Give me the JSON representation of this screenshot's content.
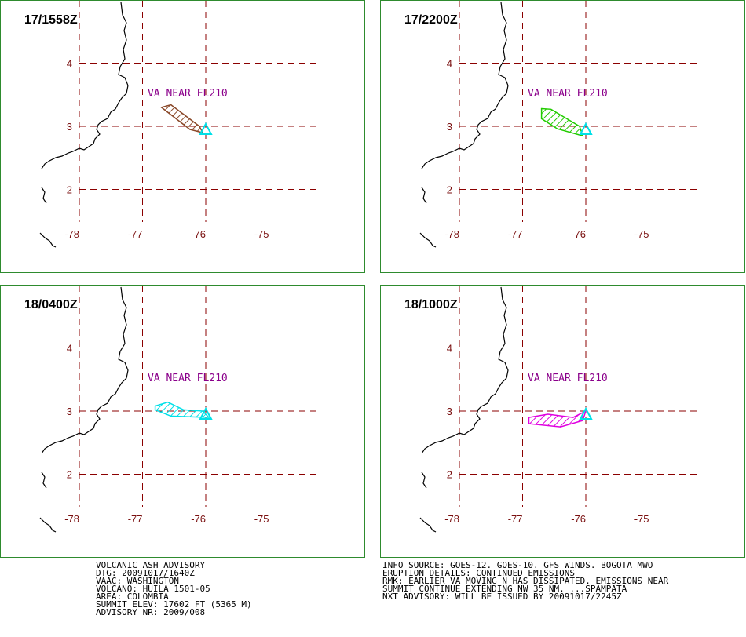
{
  "panels": [
    {
      "time": "17/1558Z",
      "plume_color": "#8b4a2b",
      "plume": [
        [
          -76.7,
          3.3
        ],
        [
          -76.55,
          3.34
        ],
        [
          -76.1,
          3.0
        ],
        [
          -76.05,
          2.9
        ],
        [
          -76.25,
          2.95
        ]
      ]
    },
    {
      "time": "17/2200Z",
      "plume_color": "#22cc00",
      "plume": [
        [
          -76.7,
          3.28
        ],
        [
          -76.55,
          3.27
        ],
        [
          -76.1,
          3.0
        ],
        [
          -76.05,
          2.85
        ],
        [
          -76.45,
          2.96
        ],
        [
          -76.7,
          3.12
        ]
      ]
    },
    {
      "time": "18/0400Z",
      "plume_color": "#00e0e8",
      "plume": [
        [
          -76.8,
          3.08
        ],
        [
          -76.6,
          3.14
        ],
        [
          -76.35,
          3.02
        ],
        [
          -76.05,
          3.0
        ],
        [
          -75.95,
          2.9
        ],
        [
          -76.55,
          2.92
        ],
        [
          -76.8,
          3.02
        ]
      ]
    },
    {
      "time": "18/1000Z",
      "plume_color": "#e000e0",
      "plume": [
        [
          -76.9,
          2.9
        ],
        [
          -76.6,
          2.95
        ],
        [
          -76.2,
          2.9
        ],
        [
          -76.0,
          3.0
        ],
        [
          -76.05,
          2.85
        ],
        [
          -76.4,
          2.75
        ],
        [
          -76.9,
          2.8
        ]
      ]
    }
  ],
  "map": {
    "volcano_label": "VA NEAR FL210",
    "volcano_color": "#00e0e8",
    "grid_color": "#8b0000",
    "lon_ticks": [
      "-78",
      "-77",
      "-76",
      "-75"
    ],
    "lat_ticks": [
      "4",
      "3",
      "2"
    ]
  },
  "advisory": {
    "left": [
      "VOLCANIC ASH ADVISORY",
      "DTG: 20091017/1640Z",
      "VAAC: WASHINGTON",
      "VOLCANO: HUILA 1501-05",
      "AREA: COLOMBIA",
      "SUMMIT ELEV: 17602 FT (5365 M)",
      "ADVISORY NR: 2009/008"
    ],
    "right": [
      "INFO SOURCE: GOES-12. GOES-10. GFS WINDS. BOGOTA MWO",
      "ERUPTION DETAILS: CONTINUED EMISSIONS",
      "RMK: EARLIER VA MOVING N HAS DISSIPATED. EMISSIONS NEAR",
      "SUMMIT CONTINUE EXTENDING NW 35 NM. ...SPAMPATA",
      "NXT ADVISORY: WILL BE ISSUED BY 20091017/2245Z"
    ]
  }
}
